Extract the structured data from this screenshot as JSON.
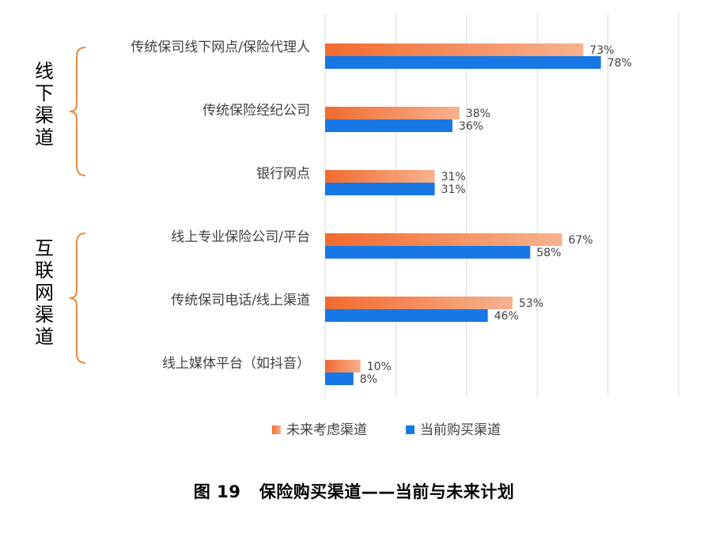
{
  "chart_data": {
    "type": "bar",
    "orientation": "horizontal",
    "categories": [
      "传统保司线下网点/保险代理人",
      "传统保险经纪公司",
      "银行网点",
      "线上专业保险公司/平台",
      "传统保司电话/线上渠道",
      "线上媒体平台（如抖音）"
    ],
    "series": [
      {
        "name": "未来考虑渠道",
        "values": [
          73,
          38,
          31,
          67,
          53,
          10
        ],
        "labels": [
          "73%",
          "38%",
          "31%",
          "67%",
          "53%",
          "10%"
        ],
        "color": "#F26A2E",
        "gradient_end": "#F7B28F"
      },
      {
        "name": "当前购买渠道",
        "values": [
          78,
          36,
          31,
          58,
          46,
          8
        ],
        "labels": [
          "78%",
          "36%",
          "31%",
          "58%",
          "46%",
          "8%"
        ],
        "color": "#1677E5"
      }
    ],
    "groups": [
      {
        "label": "线下渠道",
        "chars": [
          "线",
          "下",
          "渠",
          "道"
        ],
        "categories": [
          0,
          1,
          2
        ]
      },
      {
        "label": "互联网渠道",
        "chars": [
          "互",
          "联",
          "网",
          "渠",
          "道"
        ],
        "categories": [
          3,
          4,
          5
        ]
      }
    ],
    "xlim": [
      0,
      100
    ],
    "grid": true,
    "legend_position": "bottom",
    "bracket_color": "#E8893F"
  },
  "caption": "图 19   保险购买渠道——当前与未来计划"
}
